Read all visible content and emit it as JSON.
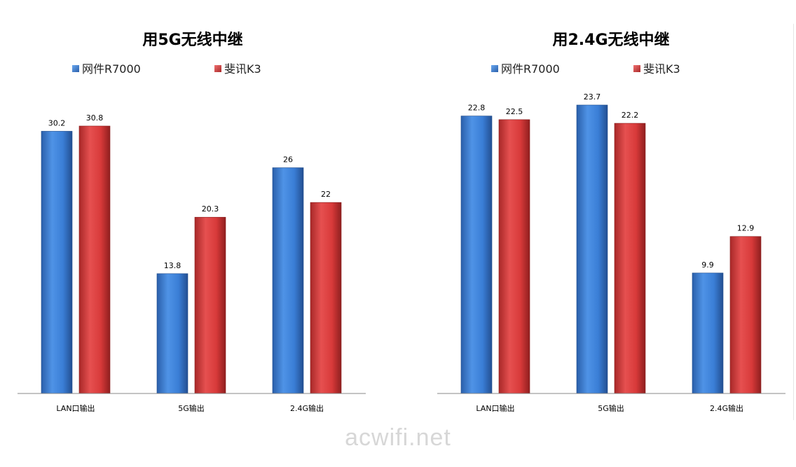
{
  "colors": {
    "series1": "#3b7fd6",
    "series2": "#d83a3a",
    "axis": "#888888"
  },
  "watermark": "acwifi.net",
  "chart_data": [
    {
      "type": "bar",
      "title": "用5G无线中继",
      "categories": [
        "LAN口输出",
        "5G输出",
        "2.4G输出"
      ],
      "series": [
        {
          "name": "网件R7000",
          "values": [
            30.2,
            13.8,
            26
          ]
        },
        {
          "name": "斐讯K3",
          "values": [
            30.8,
            20.3,
            22
          ]
        }
      ],
      "ylim": [
        0,
        30.8
      ],
      "grid": false,
      "legend": "top"
    },
    {
      "type": "bar",
      "title": "用2.4G无线中继",
      "categories": [
        "LAN口输出",
        "5G输出",
        "2.4G输出"
      ],
      "series": [
        {
          "name": "网件R7000",
          "values": [
            22.8,
            23.7,
            9.9
          ]
        },
        {
          "name": "斐讯K3",
          "values": [
            22.5,
            22.2,
            12.9
          ]
        }
      ],
      "ylim": [
        0,
        23.7
      ],
      "grid": false,
      "legend": "top"
    }
  ]
}
